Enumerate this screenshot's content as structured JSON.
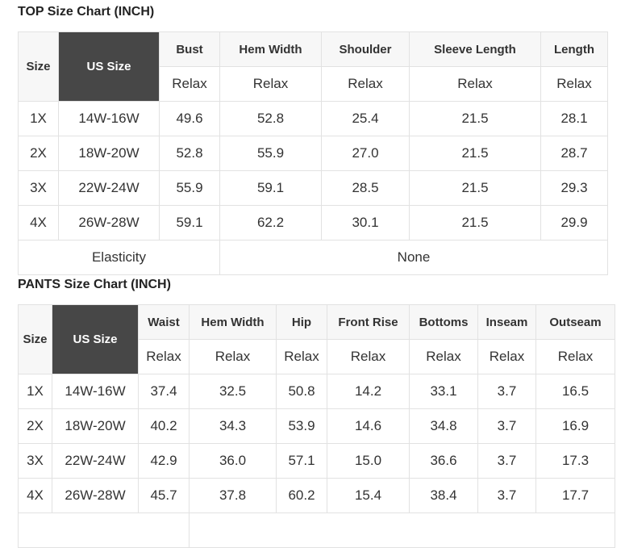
{
  "top": {
    "title": "TOP Size Chart (INCH)",
    "headers": [
      "Size",
      "US Size",
      "Bust",
      "Hem Width",
      "Shoulder",
      "Sleeve Length",
      "Length"
    ],
    "fit": [
      "Relax",
      "Relax",
      "Relax",
      "Relax",
      "Relax"
    ],
    "rows": [
      [
        "1X",
        "14W-16W",
        "49.6",
        "52.8",
        "25.4",
        "21.5",
        "28.1"
      ],
      [
        "2X",
        "18W-20W",
        "52.8",
        "55.9",
        "27.0",
        "21.5",
        "28.7"
      ],
      [
        "3X",
        "22W-24W",
        "55.9",
        "59.1",
        "28.5",
        "21.5",
        "29.3"
      ],
      [
        "4X",
        "26W-28W",
        "59.1",
        "62.2",
        "30.1",
        "21.5",
        "29.9"
      ]
    ],
    "elasticity_label": "Elasticity",
    "elasticity_value": "None"
  },
  "pants": {
    "title": "PANTS Size Chart (INCH)",
    "headers": [
      "Size",
      "US Size",
      "Waist",
      "Hem Width",
      "Hip",
      "Front Rise",
      "Bottoms",
      "Inseam",
      "Outseam"
    ],
    "fit": [
      "Relax",
      "Relax",
      "Relax",
      "Relax",
      "Relax",
      "Relax",
      "Relax"
    ],
    "rows": [
      [
        "1X",
        "14W-16W",
        "37.4",
        "32.5",
        "50.8",
        "14.2",
        "33.1",
        "3.7",
        "16.5"
      ],
      [
        "2X",
        "18W-20W",
        "40.2",
        "34.3",
        "53.9",
        "14.6",
        "34.8",
        "3.7",
        "16.9"
      ],
      [
        "3X",
        "22W-24W",
        "42.9",
        "36.0",
        "57.1",
        "15.0",
        "36.6",
        "3.7",
        "17.3"
      ],
      [
        "4X",
        "26W-28W",
        "45.7",
        "37.8",
        "60.2",
        "15.4",
        "38.4",
        "3.7",
        "17.7"
      ]
    ]
  }
}
